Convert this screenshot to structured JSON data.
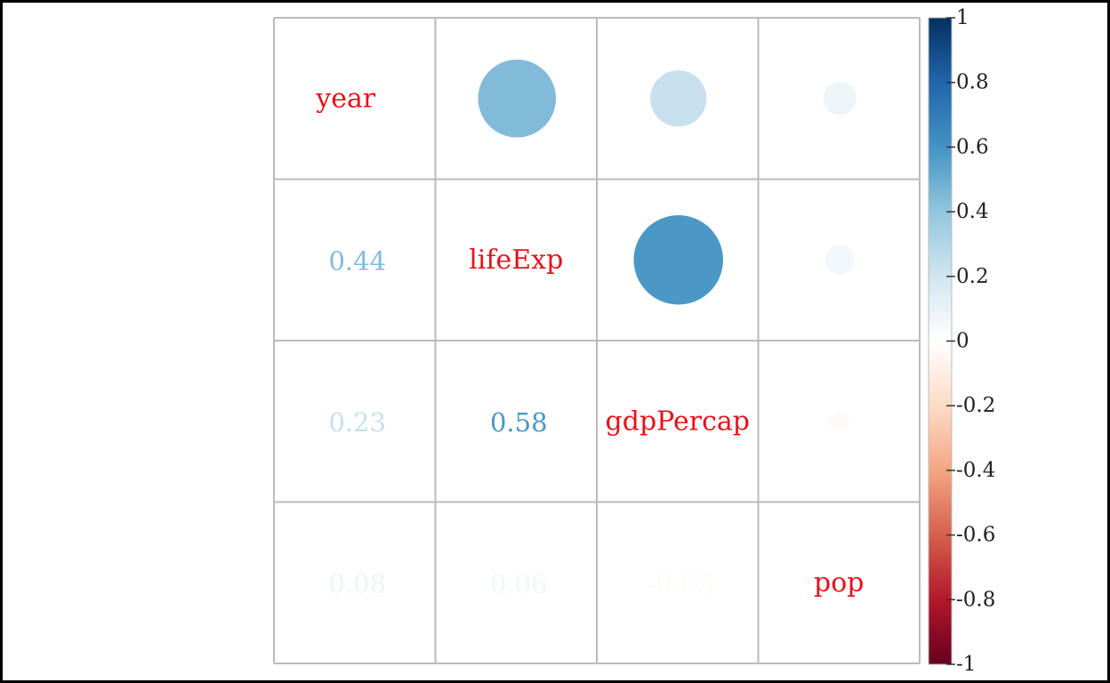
{
  "chart_data": {
    "type": "heatmap",
    "variables": [
      "year",
      "lifeExp",
      "gdpPercap",
      "pop"
    ],
    "correlations": [
      [
        1.0,
        0.44,
        0.23,
        0.08
      ],
      [
        0.44,
        1.0,
        0.58,
        0.06
      ],
      [
        0.23,
        0.58,
        1.0,
        -0.03
      ],
      [
        0.08,
        0.06,
        -0.03,
        1.0
      ]
    ],
    "lower_triangle_labels": [
      {
        "row": 1,
        "col": 0,
        "text": "0.44"
      },
      {
        "row": 2,
        "col": 0,
        "text": "0.23"
      },
      {
        "row": 2,
        "col": 1,
        "text": "0.58"
      },
      {
        "row": 3,
        "col": 0,
        "text": "0.08"
      },
      {
        "row": 3,
        "col": 1,
        "text": "0.06"
      },
      {
        "row": 3,
        "col": 2,
        "text": "-0.03"
      }
    ],
    "upper_triangle_method": "circle",
    "lower_triangle_method": "number",
    "diagonal": "variable names",
    "diagonal_label_color": "#e8111a",
    "grid_color": "#bbbbbb",
    "colorbar": {
      "position": "right",
      "range": [
        -1,
        1
      ],
      "ticks": [
        "1",
        "0.8",
        "0.6",
        "0.4",
        "0.2",
        "0",
        "-0.2",
        "-0.4",
        "-0.6",
        "-0.8",
        "-1"
      ],
      "palette": [
        "#67001f",
        "#b2182b",
        "#d6604d",
        "#f4a582",
        "#fddbc7",
        "#ffffff",
        "#d1e5f0",
        "#92c5de",
        "#4393c3",
        "#2166ac",
        "#053061"
      ]
    }
  }
}
